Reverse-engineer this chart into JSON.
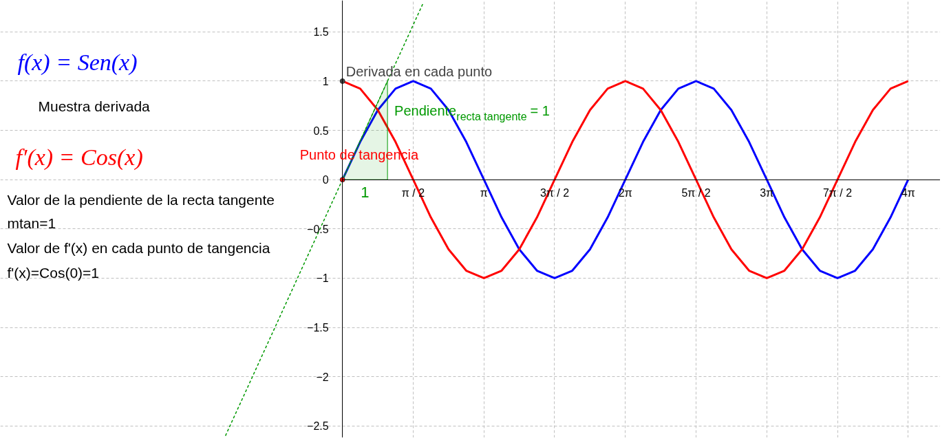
{
  "chart_data": {
    "type": "line",
    "xlim": [
      -7.6,
      13.28
    ],
    "ylim": [
      -2.62,
      1.82
    ],
    "xticks": [
      {
        "value": 1.5708,
        "label": "π / 2"
      },
      {
        "value": 3.1416,
        "label": "π"
      },
      {
        "value": 4.7124,
        "label": "3π / 2"
      },
      {
        "value": 6.2832,
        "label": "2π"
      },
      {
        "value": 7.854,
        "label": "5π / 2"
      },
      {
        "value": 9.4248,
        "label": "3π"
      },
      {
        "value": 10.9956,
        "label": "7π / 2"
      },
      {
        "value": 12.5664,
        "label": "4π"
      }
    ],
    "yticks": [
      {
        "value": -2.5,
        "label": "−2.5"
      },
      {
        "value": -2,
        "label": "−2"
      },
      {
        "value": -1.5,
        "label": "−1.5"
      },
      {
        "value": -1,
        "label": "−1"
      },
      {
        "value": -0.5,
        "label": "−0.5"
      },
      0,
      0.5,
      1,
      1.5
    ],
    "grid": true,
    "line_style": "solid",
    "series": [
      {
        "name": "f(x) = Sen(x)",
        "color": "#0000ff",
        "x": [
          0,
          0.393,
          0.785,
          1.178,
          1.571,
          1.963,
          2.356,
          2.749,
          3.142,
          3.534,
          3.927,
          4.32,
          4.712,
          5.105,
          5.498,
          5.89,
          6.283,
          6.676,
          7.069,
          7.461,
          7.854,
          8.247,
          8.639,
          9.032,
          9.425,
          9.817,
          10.21,
          10.603,
          10.996,
          11.388,
          11.781,
          12.174,
          12.566
        ],
        "values": [
          0,
          0.383,
          0.707,
          0.924,
          1,
          0.924,
          0.707,
          0.383,
          0,
          -0.383,
          -0.707,
          -0.924,
          -1,
          -0.924,
          -0.707,
          -0.383,
          0,
          0.383,
          0.707,
          0.924,
          1,
          0.924,
          0.707,
          0.383,
          0,
          -0.383,
          -0.707,
          -0.924,
          -1,
          -0.924,
          -0.707,
          -0.383,
          0
        ]
      },
      {
        "name": "f′(x) = Cos(x)",
        "color": "#ff0000",
        "x": [
          0,
          0.393,
          0.785,
          1.178,
          1.571,
          1.963,
          2.356,
          2.749,
          3.142,
          3.534,
          3.927,
          4.32,
          4.712,
          5.105,
          5.498,
          5.89,
          6.283,
          6.676,
          7.069,
          7.461,
          7.854,
          8.247,
          8.639,
          9.032,
          9.425,
          9.817,
          10.21,
          10.603,
          10.996,
          11.388,
          11.781,
          12.174,
          12.566
        ],
        "values": [
          1,
          0.924,
          0.707,
          0.383,
          0,
          -0.383,
          -0.707,
          -0.924,
          -1,
          -0.924,
          -0.707,
          -0.383,
          0,
          0.383,
          0.707,
          0.924,
          1,
          0.924,
          0.707,
          0.383,
          0,
          -0.383,
          -0.707,
          -0.924,
          -1,
          -0.924,
          -0.707,
          -0.383,
          0,
          0.383,
          0.707,
          0.924,
          1
        ]
      },
      {
        "type": "line",
        "color": "#009900",
        "line_style": "dashed",
        "x": [
          -2.6,
          1.8
        ],
        "values": [
          -2.6,
          1.8
        ]
      },
      {
        "type": "area",
        "color": "#009900",
        "x": [
          0,
          1,
          1
        ],
        "values": [
          0,
          1,
          0
        ]
      },
      {
        "type": "scatter",
        "marker": "circle",
        "x": [
          0,
          0
        ],
        "values": [
          1,
          0
        ],
        "colors": [
          "#444444",
          "#ff0000"
        ]
      }
    ],
    "annotations": [
      "Muestra derivada",
      "Valor de la pendiente de la recta tangente",
      "mtan=1",
      "Valor de f'(x) en cada punto de tangencia",
      "f'(x)=Cos(0)=1",
      {
        "text": "Derivada en cada punto",
        "x": 0,
        "y": 1
      },
      {
        "text": "Punto de tangencia",
        "x": 0,
        "y": 0
      },
      {
        "text": "Pendiente$_{recta tangente}$ = 1",
        "x": 1,
        "y": 0.7
      },
      {
        "text": "1",
        "x": 0.5,
        "y": 0
      }
    ]
  }
}
